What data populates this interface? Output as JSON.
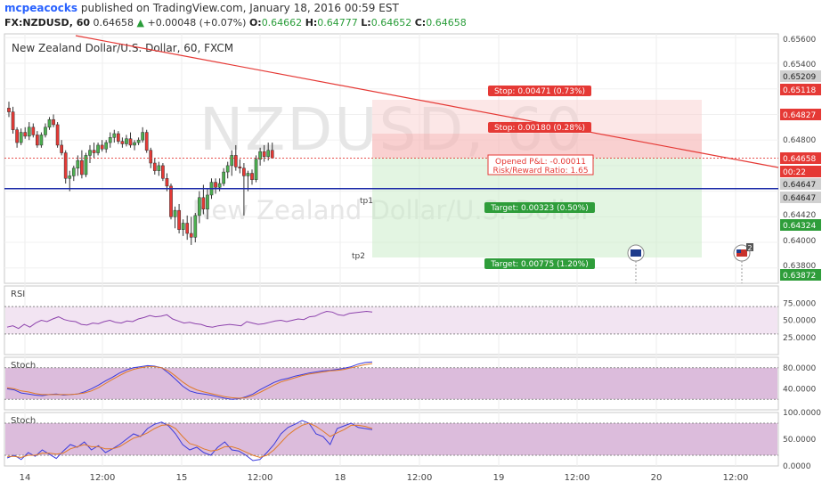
{
  "header": {
    "user": "mcpeacocks",
    "published_text": "published on TradingView.com, January 18, 2016 00:59 EST",
    "symbol": "FX:NZDUSD, 60",
    "last": "0.64658",
    "change_arrow": "▲",
    "change": "+0.00048 (+0.07%)",
    "o_label": "O:",
    "o": "0.64662",
    "h_label": "H:",
    "h": "0.64777",
    "l_label": "L:",
    "l": "0.64652",
    "c_label": "C:",
    "c": "0.64658"
  },
  "chart_data": {
    "type": "candlestick",
    "title": "New Zealand Dollar/U.S. Dollar, 60, FXCM",
    "watermark_symbol": "NZDUSD, 60",
    "watermark_name": "New Zealand Dollar/U.S. Dollar",
    "x_ticks": [
      "14",
      "12:00",
      "15",
      "12:00",
      "18",
      "12:00",
      "19",
      "12:00",
      "20",
      "12:00"
    ],
    "y_ticks": [
      "0.65600",
      "0.65400",
      "0.65209",
      "0.65118",
      "0.64827",
      "0.64800",
      "0.64658",
      "00:22",
      "0.64647",
      "0.64647",
      "0.64420",
      "0.64324",
      "0.64000",
      "0.63800",
      "0.63872"
    ],
    "price_axis": {
      "min": 0.6368,
      "max": 0.6563
    },
    "candles": [
      [
        0.6505,
        0.651,
        0.6498,
        0.6502
      ],
      [
        0.6502,
        0.6506,
        0.6485,
        0.6488
      ],
      [
        0.6488,
        0.649,
        0.6474,
        0.6478
      ],
      [
        0.6478,
        0.6489,
        0.6476,
        0.6486
      ],
      [
        0.6486,
        0.649,
        0.6481,
        0.6483
      ],
      [
        0.6483,
        0.6494,
        0.648,
        0.649
      ],
      [
        0.649,
        0.6493,
        0.6482,
        0.6484
      ],
      [
        0.6484,
        0.6487,
        0.6474,
        0.6476
      ],
      [
        0.6476,
        0.6486,
        0.6474,
        0.6484
      ],
      [
        0.6484,
        0.6493,
        0.6482,
        0.649
      ],
      [
        0.649,
        0.6498,
        0.6488,
        0.6496
      ],
      [
        0.6496,
        0.65,
        0.649,
        0.6492
      ],
      [
        0.6492,
        0.6494,
        0.6474,
        0.6476
      ],
      [
        0.6476,
        0.648,
        0.6468,
        0.647
      ],
      [
        0.647,
        0.6472,
        0.6446,
        0.645
      ],
      [
        0.645,
        0.6456,
        0.644,
        0.6452
      ],
      [
        0.6452,
        0.646,
        0.6448,
        0.6458
      ],
      [
        0.6458,
        0.6468,
        0.6452,
        0.6464
      ],
      [
        0.6464,
        0.6472,
        0.645,
        0.6453
      ],
      [
        0.6453,
        0.647,
        0.6451,
        0.6468
      ],
      [
        0.6468,
        0.6476,
        0.6462,
        0.6472
      ],
      [
        0.6472,
        0.6478,
        0.6466,
        0.647
      ],
      [
        0.647,
        0.6478,
        0.6468,
        0.6476
      ],
      [
        0.6476,
        0.648,
        0.6471,
        0.6473
      ],
      [
        0.6473,
        0.648,
        0.647,
        0.6478
      ],
      [
        0.6478,
        0.6486,
        0.6474,
        0.6482
      ],
      [
        0.6482,
        0.6488,
        0.6478,
        0.6485
      ],
      [
        0.6485,
        0.6487,
        0.6477,
        0.6479
      ],
      [
        0.6479,
        0.6482,
        0.6474,
        0.6477
      ],
      [
        0.6477,
        0.6484,
        0.6475,
        0.6481
      ],
      [
        0.6481,
        0.6486,
        0.6474,
        0.6476
      ],
      [
        0.6476,
        0.648,
        0.6472,
        0.6478
      ],
      [
        0.6478,
        0.6482,
        0.6476,
        0.648
      ],
      [
        0.648,
        0.649,
        0.6478,
        0.6486
      ],
      [
        0.6486,
        0.6488,
        0.647,
        0.6472
      ],
      [
        0.6472,
        0.6474,
        0.6458,
        0.6462
      ],
      [
        0.6462,
        0.6466,
        0.6453,
        0.6456
      ],
      [
        0.6456,
        0.6463,
        0.6452,
        0.646
      ],
      [
        0.646,
        0.6462,
        0.6448,
        0.645
      ],
      [
        0.645,
        0.6454,
        0.644,
        0.6444
      ],
      [
        0.6444,
        0.6446,
        0.6418,
        0.642
      ],
      [
        0.642,
        0.6428,
        0.6411,
        0.6425
      ],
      [
        0.6425,
        0.643,
        0.6407,
        0.641
      ],
      [
        0.641,
        0.6418,
        0.6405,
        0.6415
      ],
      [
        0.6415,
        0.6421,
        0.6402,
        0.6407
      ],
      [
        0.6407,
        0.642,
        0.6398,
        0.6404
      ],
      [
        0.6404,
        0.6423,
        0.64,
        0.6421
      ],
      [
        0.6421,
        0.644,
        0.6415,
        0.6435
      ],
      [
        0.6435,
        0.6445,
        0.6422,
        0.6426
      ],
      [
        0.6426,
        0.6442,
        0.6418,
        0.6437
      ],
      [
        0.6437,
        0.645,
        0.6434,
        0.6447
      ],
      [
        0.6447,
        0.645,
        0.6438,
        0.6443
      ],
      [
        0.6443,
        0.645,
        0.644,
        0.6446
      ],
      [
        0.6446,
        0.6458,
        0.6444,
        0.6455
      ],
      [
        0.6455,
        0.6463,
        0.645,
        0.646
      ],
      [
        0.646,
        0.6472,
        0.6452,
        0.6468
      ],
      [
        0.6468,
        0.6476,
        0.6456,
        0.6459
      ],
      [
        0.6459,
        0.6465,
        0.6454,
        0.6458
      ],
      [
        0.6458,
        0.6462,
        0.6421,
        0.6452
      ],
      [
        0.6452,
        0.6456,
        0.644,
        0.6454
      ],
      [
        0.6454,
        0.6457,
        0.6445,
        0.6449
      ],
      [
        0.6449,
        0.6468,
        0.6447,
        0.6465
      ],
      [
        0.6465,
        0.6474,
        0.646,
        0.6471
      ],
      [
        0.6471,
        0.6476,
        0.6463,
        0.6467
      ],
      [
        0.6467,
        0.6478,
        0.6464,
        0.6472
      ],
      [
        0.6472,
        0.6478,
        0.6466,
        0.6466
      ]
    ],
    "lines": {
      "horizontal_level": 0.6442,
      "dotted_last_price": 0.64658,
      "trend_label_1": "tp1",
      "trend_label_2": "tp2"
    },
    "position": {
      "stop1": "Stop: 0.00471 (0.73%)",
      "stop2": "Stop: 0.00180 (0.28%)",
      "pnl": "Opened P&L: -0.00011",
      "rr": "Risk/Reward Ratio: 1.65",
      "target1": "Target: 0.00323 (0.50%)",
      "target2": "Target: 0.00775 (1.20%)"
    },
    "event_badge": "2",
    "colors": {
      "up": "#4caf50",
      "down": "#e53935",
      "level": "#1c2ba8",
      "trend": "#e53935",
      "stop_label": "#e53935",
      "target_label": "#2e9d3a",
      "last_price": "#e53935"
    },
    "panels": [
      {
        "name": "RSI",
        "y_ticks": [
          "75.0000",
          "50.0000",
          "25.0000"
        ],
        "range": [
          0,
          100
        ],
        "band": [
          30,
          70
        ],
        "series": [
          {
            "color": "#8e44ad",
            "values": [
              40,
              42,
              38,
              44,
              40,
              46,
              50,
              48,
              52,
              55,
              51,
              49,
              48,
              44,
              43,
              46,
              45,
              48,
              50,
              47,
              46,
              49,
              48,
              52,
              54,
              57,
              55,
              56,
              58,
              52,
              49,
              46,
              47,
              45,
              44,
              41,
              40,
              42,
              43,
              44,
              43,
              42,
              48,
              46,
              44,
              45,
              47,
              49,
              50,
              48,
              50,
              52,
              51,
              55,
              56,
              60,
              63,
              62,
              58,
              57,
              60,
              61,
              62,
              63,
              62
            ]
          }
        ]
      },
      {
        "name": "Stoch",
        "y_ticks": [
          "80.0000",
          "40.0000"
        ],
        "range": [
          0,
          100
        ],
        "band": [
          20,
          80
        ],
        "series": [
          {
            "color": "#3b3bdc",
            "values": [
              40,
              38,
              32,
              30,
              28,
              27,
              29,
              30,
              28,
              29,
              30,
              34,
              40,
              47,
              55,
              62,
              70,
              76,
              80,
              82,
              84,
              83,
              80,
              70,
              58,
              45,
              36,
              32,
              30,
              28,
              25,
              22,
              20,
              21,
              25,
              30,
              38,
              45,
              52,
              57,
              60,
              64,
              67,
              70,
              72,
              74,
              75,
              77,
              79,
              82,
              87,
              90,
              91
            ]
          },
          {
            "color": "#e07a29",
            "values": [
              42,
              40,
              36,
              34,
              31,
              29,
              29,
              29,
              29,
              29,
              30,
              32,
              36,
              42,
              50,
              58,
              65,
              72,
              77,
              80,
              82,
              82,
              80,
              74,
              64,
              53,
              44,
              38,
              34,
              31,
              28,
              25,
              23,
              22,
              23,
              27,
              33,
              40,
              47,
              53,
              57,
              61,
              65,
              68,
              70,
              72,
              74,
              75,
              77,
              80,
              83,
              86,
              88
            ]
          }
        ]
      },
      {
        "name": "Stoch",
        "y_ticks": [
          "100.0000",
          "50.0000",
          "0.0000"
        ],
        "range": [
          0,
          100
        ],
        "band": [
          20,
          80
        ],
        "series": [
          {
            "color": "#3b3bdc",
            "values": [
              15,
              20,
              12,
              25,
              18,
              30,
              22,
              14,
              28,
              40,
              35,
              45,
              30,
              38,
              25,
              32,
              40,
              50,
              60,
              55,
              70,
              78,
              82,
              75,
              60,
              40,
              30,
              35,
              25,
              20,
              35,
              45,
              30,
              28,
              20,
              10,
              12,
              25,
              40,
              60,
              72,
              78,
              85,
              80,
              60,
              55,
              40,
              70,
              75,
              80,
              72,
              70,
              68
            ]
          },
          {
            "color": "#e07a29",
            "values": [
              18,
              18,
              16,
              20,
              20,
              24,
              24,
              22,
              24,
              32,
              36,
              40,
              36,
              36,
              32,
              32,
              36,
              44,
              52,
              56,
              62,
              70,
              76,
              77,
              70,
              55,
              42,
              38,
              32,
              28,
              30,
              36,
              36,
              32,
              26,
              20,
              16,
              20,
              30,
              44,
              58,
              68,
              76,
              80,
              74,
              65,
              55,
              62,
              68,
              76,
              76,
              74,
              70
            ]
          }
        ]
      }
    ]
  }
}
